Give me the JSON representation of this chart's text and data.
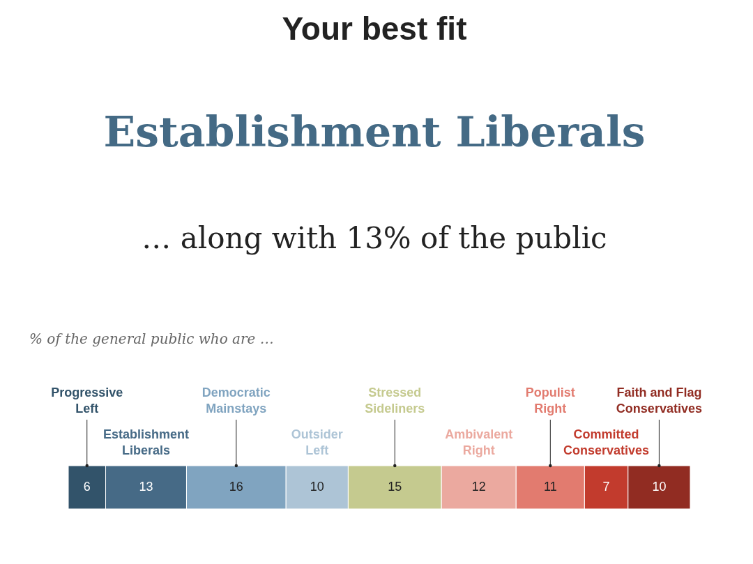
{
  "chart_data": {
    "type": "bar",
    "orientation": "horizontal",
    "stacked": true,
    "data_labels": true,
    "title": "Your best fit",
    "subtitle": "% of the general public who are …",
    "annotations": [
      "Establishment Liberals",
      "… along with  13%  of the public"
    ],
    "categories": [
      null
    ],
    "series": [
      {
        "name": "Progressive Left",
        "color": "#32536a",
        "values": [
          6
        ]
      },
      {
        "name": "Establishment Liberals",
        "color": "#466a86",
        "values": [
          13
        ]
      },
      {
        "name": "Democratic Mainstays",
        "color": "#80a4c0",
        "values": [
          16
        ]
      },
      {
        "name": "Outsider Left",
        "color": "#adc4d6",
        "values": [
          10
        ]
      },
      {
        "name": "Stressed Sideliners",
        "color": "#c5ca8f",
        "values": [
          15
        ]
      },
      {
        "name": "Ambivalent Right",
        "color": "#eba99f",
        "values": [
          12
        ]
      },
      {
        "name": "Populist Right",
        "color": "#e27b6f",
        "values": [
          11
        ]
      },
      {
        "name": "Committed Conservatives",
        "color": "#c23b2d",
        "values": [
          7
        ]
      },
      {
        "name": "Faith and Flag Conservatives",
        "color": "#912c22",
        "values": [
          10
        ]
      }
    ]
  }
}
